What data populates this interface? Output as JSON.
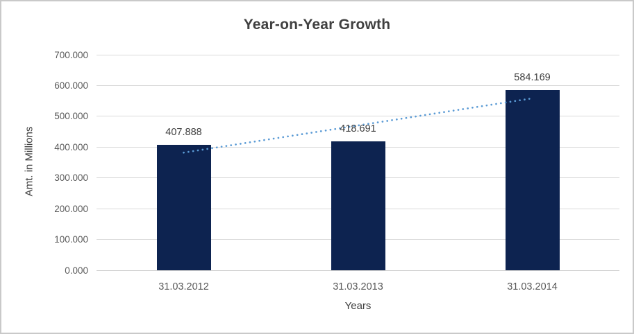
{
  "chart": {
    "title": "Year-on-Year Growth",
    "y_axis_title": "Amt. in Millions",
    "x_axis_title": "Years"
  },
  "chart_data": {
    "type": "bar",
    "title": "Year-on-Year Growth",
    "xlabel": "Years",
    "ylabel": "Amt. in Millions",
    "categories": [
      "31.03.2012",
      "31.03.2013",
      "31.03.2014"
    ],
    "values": [
      407.888,
      418.691,
      584.169
    ],
    "value_labels": [
      "407.888",
      "418.691",
      "584.169"
    ],
    "ylim": [
      0,
      700
    ],
    "ytick_step": 100,
    "ytick_labels": [
      "0.000",
      "100.000",
      "200.000",
      "300.000",
      "400.000",
      "500.000",
      "600.000",
      "700.000"
    ],
    "grid": true,
    "legend": false,
    "trendline": {
      "type": "linear",
      "style": "dotted",
      "color": "#5b9bd5"
    },
    "colors": {
      "bar": "#0d2350",
      "gridline": "#d9d9d9",
      "axis_line": "#d0d0d0",
      "title_text": "#404040",
      "tick_text": "#595959",
      "frame_border": "#c9c9c9",
      "background": "#ffffff"
    }
  }
}
